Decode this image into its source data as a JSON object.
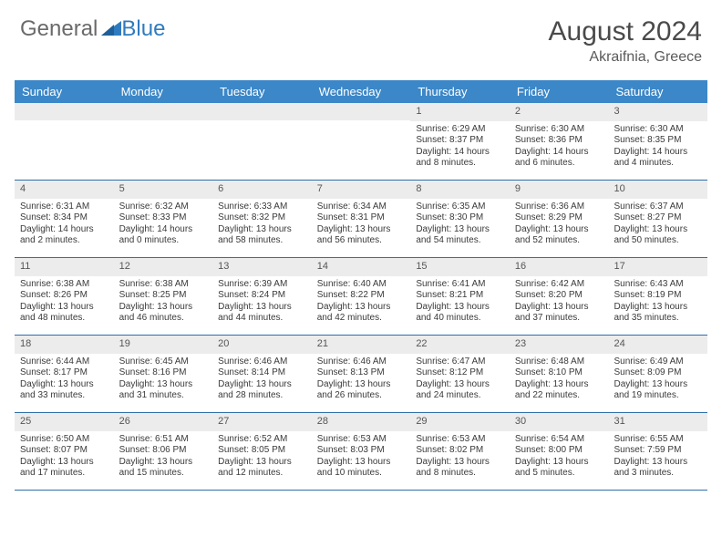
{
  "logo": {
    "part1": "General",
    "part2": "Blue"
  },
  "title": "August 2024",
  "subtitle": "Akraifnia, Greece",
  "colors": {
    "header_bg": "#3b87c8",
    "header_text": "#ffffff",
    "daynum_bg": "#ececec",
    "week_border": "#2f6fa8",
    "logo_gray": "#6a6a6a",
    "logo_blue": "#2f7bbf",
    "title_color": "#4a4a4a",
    "body_text": "#3a3a3a",
    "background": "#ffffff"
  },
  "typography": {
    "title_fontsize": 30,
    "subtitle_fontsize": 16,
    "dayhead_fontsize": 13,
    "daynum_fontsize": 11,
    "cell_fontsize": 10,
    "logo_fontsize": 24
  },
  "layout": {
    "columns": 7,
    "rows": 5,
    "calendar_width": 760
  },
  "day_headers": [
    "Sunday",
    "Monday",
    "Tuesday",
    "Wednesday",
    "Thursday",
    "Friday",
    "Saturday"
  ],
  "weeks": [
    [
      null,
      null,
      null,
      null,
      {
        "n": "1",
        "sr": "6:29 AM",
        "ss": "8:37 PM",
        "dl": "14 hours and 8 minutes."
      },
      {
        "n": "2",
        "sr": "6:30 AM",
        "ss": "8:36 PM",
        "dl": "14 hours and 6 minutes."
      },
      {
        "n": "3",
        "sr": "6:30 AM",
        "ss": "8:35 PM",
        "dl": "14 hours and 4 minutes."
      }
    ],
    [
      {
        "n": "4",
        "sr": "6:31 AM",
        "ss": "8:34 PM",
        "dl": "14 hours and 2 minutes."
      },
      {
        "n": "5",
        "sr": "6:32 AM",
        "ss": "8:33 PM",
        "dl": "14 hours and 0 minutes."
      },
      {
        "n": "6",
        "sr": "6:33 AM",
        "ss": "8:32 PM",
        "dl": "13 hours and 58 minutes."
      },
      {
        "n": "7",
        "sr": "6:34 AM",
        "ss": "8:31 PM",
        "dl": "13 hours and 56 minutes."
      },
      {
        "n": "8",
        "sr": "6:35 AM",
        "ss": "8:30 PM",
        "dl": "13 hours and 54 minutes."
      },
      {
        "n": "9",
        "sr": "6:36 AM",
        "ss": "8:29 PM",
        "dl": "13 hours and 52 minutes."
      },
      {
        "n": "10",
        "sr": "6:37 AM",
        "ss": "8:27 PM",
        "dl": "13 hours and 50 minutes."
      }
    ],
    [
      {
        "n": "11",
        "sr": "6:38 AM",
        "ss": "8:26 PM",
        "dl": "13 hours and 48 minutes."
      },
      {
        "n": "12",
        "sr": "6:38 AM",
        "ss": "8:25 PM",
        "dl": "13 hours and 46 minutes."
      },
      {
        "n": "13",
        "sr": "6:39 AM",
        "ss": "8:24 PM",
        "dl": "13 hours and 44 minutes."
      },
      {
        "n": "14",
        "sr": "6:40 AM",
        "ss": "8:22 PM",
        "dl": "13 hours and 42 minutes."
      },
      {
        "n": "15",
        "sr": "6:41 AM",
        "ss": "8:21 PM",
        "dl": "13 hours and 40 minutes."
      },
      {
        "n": "16",
        "sr": "6:42 AM",
        "ss": "8:20 PM",
        "dl": "13 hours and 37 minutes."
      },
      {
        "n": "17",
        "sr": "6:43 AM",
        "ss": "8:19 PM",
        "dl": "13 hours and 35 minutes."
      }
    ],
    [
      {
        "n": "18",
        "sr": "6:44 AM",
        "ss": "8:17 PM",
        "dl": "13 hours and 33 minutes."
      },
      {
        "n": "19",
        "sr": "6:45 AM",
        "ss": "8:16 PM",
        "dl": "13 hours and 31 minutes."
      },
      {
        "n": "20",
        "sr": "6:46 AM",
        "ss": "8:14 PM",
        "dl": "13 hours and 28 minutes."
      },
      {
        "n": "21",
        "sr": "6:46 AM",
        "ss": "8:13 PM",
        "dl": "13 hours and 26 minutes."
      },
      {
        "n": "22",
        "sr": "6:47 AM",
        "ss": "8:12 PM",
        "dl": "13 hours and 24 minutes."
      },
      {
        "n": "23",
        "sr": "6:48 AM",
        "ss": "8:10 PM",
        "dl": "13 hours and 22 minutes."
      },
      {
        "n": "24",
        "sr": "6:49 AM",
        "ss": "8:09 PM",
        "dl": "13 hours and 19 minutes."
      }
    ],
    [
      {
        "n": "25",
        "sr": "6:50 AM",
        "ss": "8:07 PM",
        "dl": "13 hours and 17 minutes."
      },
      {
        "n": "26",
        "sr": "6:51 AM",
        "ss": "8:06 PM",
        "dl": "13 hours and 15 minutes."
      },
      {
        "n": "27",
        "sr": "6:52 AM",
        "ss": "8:05 PM",
        "dl": "13 hours and 12 minutes."
      },
      {
        "n": "28",
        "sr": "6:53 AM",
        "ss": "8:03 PM",
        "dl": "13 hours and 10 minutes."
      },
      {
        "n": "29",
        "sr": "6:53 AM",
        "ss": "8:02 PM",
        "dl": "13 hours and 8 minutes."
      },
      {
        "n": "30",
        "sr": "6:54 AM",
        "ss": "8:00 PM",
        "dl": "13 hours and 5 minutes."
      },
      {
        "n": "31",
        "sr": "6:55 AM",
        "ss": "7:59 PM",
        "dl": "13 hours and 3 minutes."
      }
    ]
  ],
  "labels": {
    "sunrise": "Sunrise:",
    "sunset": "Sunset:",
    "daylight": "Daylight:"
  }
}
